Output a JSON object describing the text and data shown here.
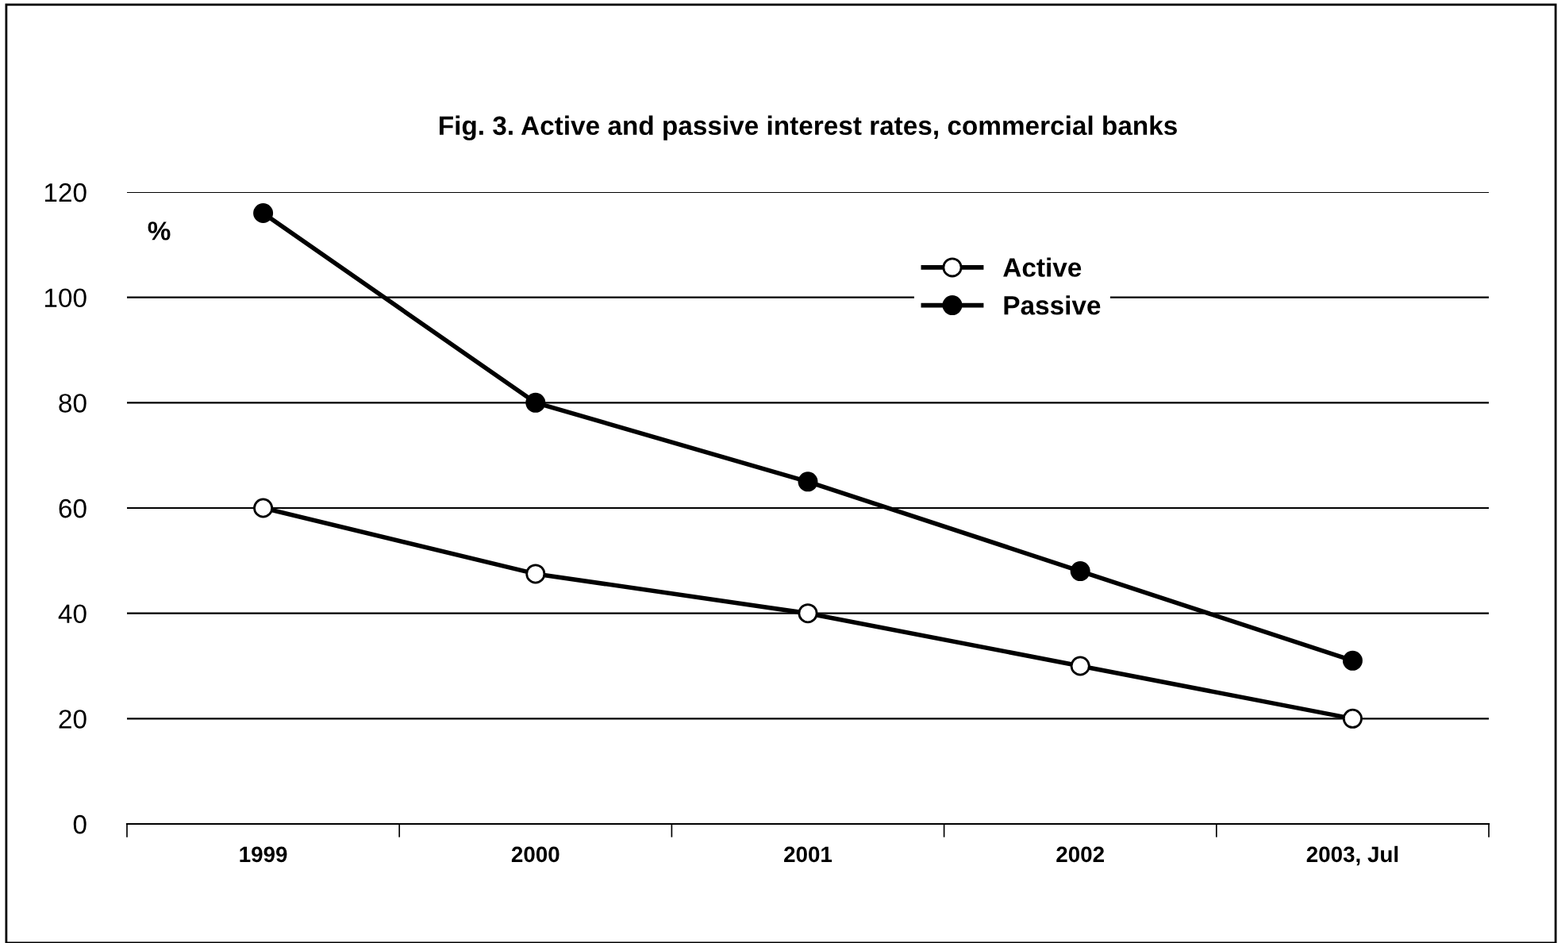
{
  "chart_data": {
    "type": "line",
    "title": "Fig. 3. Active and passive interest rates, commercial banks",
    "ylabel": "%",
    "categories": [
      "1999",
      "2000",
      "2001",
      "2002",
      "2003, Jul"
    ],
    "series": [
      {
        "name": "Active",
        "color": "#000000",
        "values": [
          60,
          47.5,
          40,
          30,
          20
        ],
        "marker": "circle"
      },
      {
        "name": "Passive",
        "color": "#000000",
        "values": [
          116,
          80,
          65,
          48,
          31
        ],
        "marker": "circle"
      }
    ],
    "ylim": [
      0,
      120
    ],
    "yticks": [
      0,
      20,
      40,
      60,
      80,
      100,
      120
    ],
    "grid": "y",
    "legend": "top",
    "line_style": "solid"
  }
}
